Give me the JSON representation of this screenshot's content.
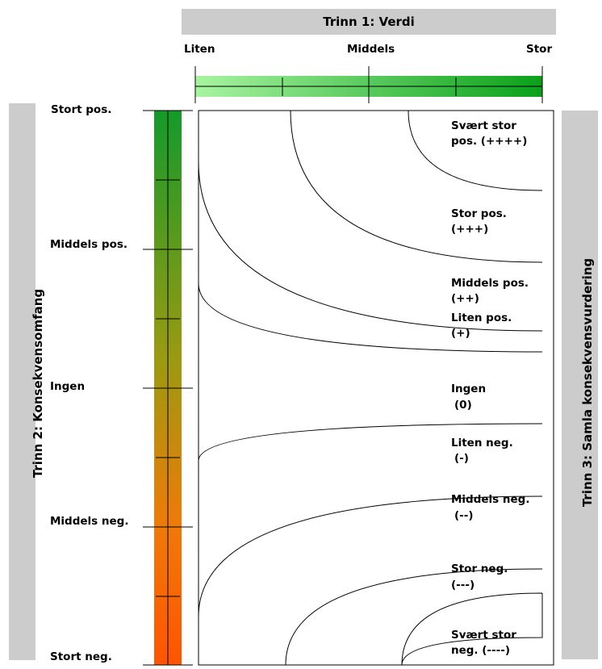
{
  "step1": {
    "title": "Trinn 1: Verdi",
    "low": "Liten",
    "mid": "Middels",
    "high": "Stor"
  },
  "step2": {
    "title": "Trinn 2: Konsekvensomfang",
    "labels": [
      "Stort pos.",
      "Middels pos.",
      "Ingen",
      "Middels neg.",
      "Stort neg."
    ]
  },
  "step3": {
    "title": "Trinn 3: Samla konsekvensvurdering",
    "zones": [
      {
        "name": "Svært stor",
        "sym": "pos. (++++)"
      },
      {
        "name": "Stor pos.",
        "sym": "(+++)"
      },
      {
        "name": "Middels pos.",
        "sym": "(++)"
      },
      {
        "name": "Liten pos.",
        "sym": "(+)"
      },
      {
        "name": "Ingen",
        "sym": "(0)"
      },
      {
        "name": "Liten neg.",
        "sym": "(-)"
      },
      {
        "name": "Middels neg.",
        "sym": "(--)"
      },
      {
        "name": "Stor neg.",
        "sym": "(---)"
      },
      {
        "name": "Svært stor",
        "sym": "neg.  (----)"
      }
    ]
  },
  "colors": {
    "band_grey": "#cccccc",
    "value_bar_start": "#a8f4a0",
    "value_bar_end": "#0aa01a",
    "scope_bar_top": "#139a2a",
    "scope_bar_mid": "#9c9a10",
    "scope_bar_bottom": "#ff5400"
  }
}
